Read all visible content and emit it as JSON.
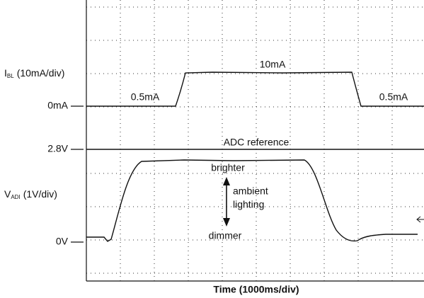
{
  "axis_labels": {
    "current": {
      "symbol": "I",
      "subscript": "BL",
      "unit": "(10mA/div)"
    },
    "voltage": {
      "symbol": "V",
      "subscript": "ADI",
      "unit": "(1V/div)"
    },
    "time": "Time (1000ms/div)"
  },
  "levels": {
    "zero_current": "0mA",
    "adc_voltage": "2.8V",
    "zero_voltage": "0V"
  },
  "annotations": {
    "high_current": "10mA",
    "low_current_left": "0.5mA",
    "low_current_right": "0.5mA",
    "reference": "ADC reference",
    "brighter": "brighter",
    "ambient": "ambient",
    "lighting": "lighting",
    "dimmer": "dimmer"
  }
}
